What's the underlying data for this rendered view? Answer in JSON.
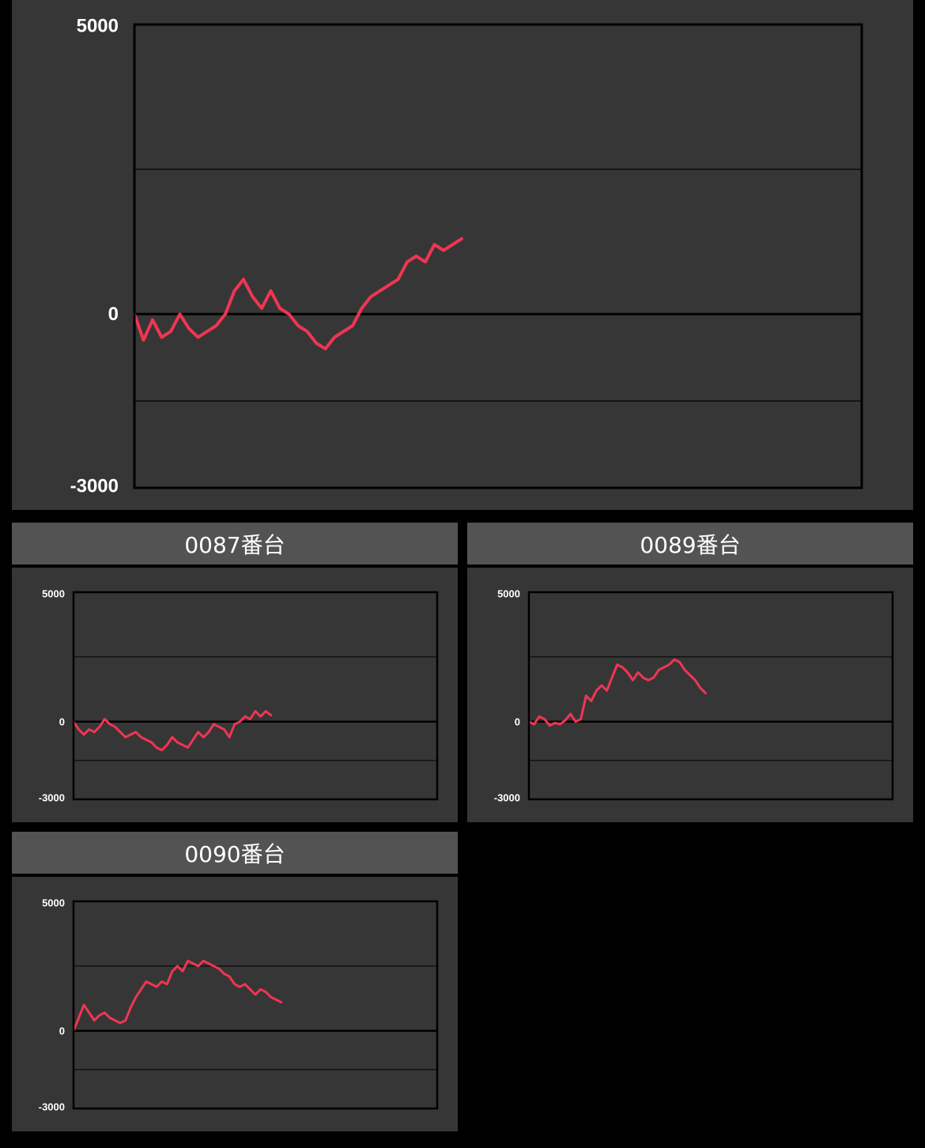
{
  "theme": {
    "background": "#000000",
    "panel": "#363636",
    "header": "#535353",
    "line": "#f03553",
    "plot_border": "#000000"
  },
  "chart_data": [
    {
      "type": "line",
      "title": "",
      "ylim": [
        -3000,
        5000
      ],
      "yticks": [
        "5000",
        "0",
        "-3000"
      ],
      "gridlines": [
        2500,
        0,
        -1500
      ],
      "x_capacity": 80,
      "series": [
        {
          "values": [
            0,
            -450,
            -100,
            -400,
            -300,
            0,
            -250,
            -400,
            -300,
            -200,
            0,
            400,
            600,
            300,
            100,
            400,
            100,
            0,
            -200,
            -300,
            -500,
            -600,
            -400,
            -300,
            -200,
            100,
            300,
            400,
            500,
            600,
            900,
            1000,
            900,
            1200,
            1100,
            1200,
            1300
          ]
        }
      ]
    },
    {
      "type": "line",
      "title": "0087番台",
      "ylim": [
        -3000,
        5000
      ],
      "yticks": [
        "5000",
        "0",
        "-3000"
      ],
      "gridlines": [
        2500,
        0,
        -1500
      ],
      "x_capacity": 70,
      "series": [
        {
          "values": [
            0,
            -300,
            -500,
            -300,
            -400,
            -200,
            100,
            -100,
            -200,
            -400,
            -600,
            -500,
            -400,
            -600,
            -700,
            -800,
            -1000,
            -1100,
            -900,
            -600,
            -800,
            -900,
            -1000,
            -700,
            -400,
            -600,
            -400,
            -100,
            -200,
            -300,
            -600,
            -100,
            0,
            200,
            100,
            400,
            200,
            400,
            250
          ]
        }
      ]
    },
    {
      "type": "line",
      "title": "0089番台",
      "ylim": [
        -3000,
        5000
      ],
      "yticks": [
        "5000",
        "0",
        "-3000"
      ],
      "gridlines": [
        2500,
        0,
        -1500
      ],
      "x_capacity": 70,
      "series": [
        {
          "values": [
            0,
            -100,
            200,
            100,
            -150,
            -50,
            -100,
            50,
            300,
            0,
            100,
            1000,
            800,
            1200,
            1400,
            1200,
            1700,
            2200,
            2100,
            1900,
            1600,
            1900,
            1700,
            1600,
            1700,
            2000,
            2100,
            2200,
            2400,
            2300,
            2000,
            1800,
            1600,
            1300,
            1100
          ]
        }
      ]
    },
    {
      "type": "line",
      "title": "0090番台",
      "ylim": [
        -3000,
        5000
      ],
      "yticks": [
        "5000",
        "0",
        "-3000"
      ],
      "gridlines": [
        2500,
        0,
        -1500
      ],
      "x_capacity": 70,
      "series": [
        {
          "values": [
            0,
            500,
            1000,
            700,
            400,
            600,
            700,
            500,
            400,
            300,
            400,
            900,
            1300,
            1600,
            1900,
            1800,
            1700,
            1900,
            1800,
            2300,
            2500,
            2300,
            2700,
            2600,
            2500,
            2700,
            2600,
            2500,
            2400,
            2200,
            2100,
            1800,
            1700,
            1800,
            1600,
            1400,
            1600,
            1500,
            1300,
            1200,
            1100
          ]
        }
      ]
    }
  ]
}
